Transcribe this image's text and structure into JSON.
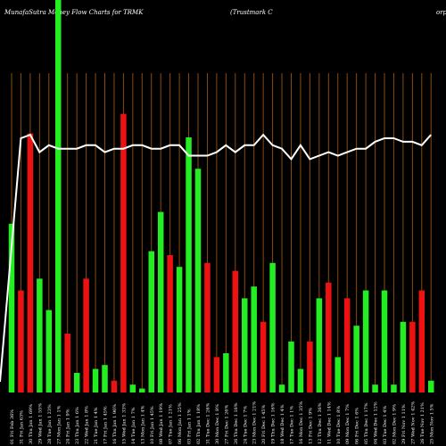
{
  "header": {
    "title_left": "MunafaSutra  Money Flow  Charts for TRMK",
    "title_right": "(Trustmark C",
    "title_corp": "orp"
  },
  "colors": {
    "background": "#000000",
    "grid": "#8a4b0f",
    "inflow": "#22ee22",
    "outflow": "#ee1111",
    "price_line": "#ffffff"
  },
  "chart_data": {
    "type": "bar",
    "title": "MunafaSutra  Money Flow  Charts for TRMK (Trustmark Corp)",
    "xlabel": "",
    "ylabel": "",
    "grid": "vertical",
    "legend": "none",
    "bar_ylim": [
      0,
      100
    ],
    "line_ylim": [
      0,
      100
    ],
    "categories": [
      "01 Fri Feb 2025",
      "31 Fri Jan 2025",
      "30 Thu Jan 2025",
      "29 Wed Jan 2025",
      "28 Tue Jan 2025",
      "27 Mon Jan 2025",
      "24 Fri Jan 2025",
      "23 Thu Jan 2025",
      "22 Wed Jan 2025",
      "21 Tue Jan 2025",
      "17 Fri Jan 2025",
      "16 Thu Jan 2025",
      "15 Wed Jan 2025",
      "14 Tue Jan 2025",
      "13 Mon Jan 2025",
      "10 Fri Jan 2025",
      "08 Wed Jan 2025",
      "07 Tue Jan 2025",
      "06 Mon Jan 2025",
      "03 Fri Jan 2025",
      "02 Thu Jan 2025",
      "31 Tue Dec 2024",
      "30 Mon Dec 2024",
      "27 Fri Dec 2024",
      "26 Thu Dec 2024",
      "24 Tue Dec 2024",
      "23 Mon Dec 2024",
      "20 Fri Dec 2024",
      "19 Thu Dec 2024",
      "18 Wed Dec 2024",
      "17 Tue Dec 2024",
      "16 Mon Dec 2024",
      "13 Fri Dec 2024",
      "12 Thu Dec 2024",
      "11 Wed Dec 2024",
      "10 Tue Dec 2024",
      "09 Mon Dec 2024",
      "06 Fri Dec 2024",
      "05 Thu Dec 2024",
      "04 Wed Dec 2024",
      "03 Tue Dec 2024",
      "02 Mon Dec 2024",
      "29 Fri Nov 2024",
      "27 Wed Nov 2024",
      "26 Tue Nov 2024",
      "25 Mon Nov 2024"
    ],
    "tick_labels": [
      "01 Fri Feb 36%",
      "31 Fri Jan 63%",
      "30 Thu Jan 1 69%",
      "29 Wed Jan 1 55%",
      "28 Tue Jan 1 23%",
      "27 Mon Jan 1 1%",
      "24 Fri Jan 1 9%",
      "23 Thu Jan 1 6%",
      "22 Wed Jan 1 8%",
      "21 Tue Jan 1 4%",
      "17 Fri Jan 1 45%",
      "16 Thu Jan 1 96%",
      "15 Wed Jan 1 33%",
      "14 Tue Jan 1 7%",
      "13 Mon Jan 1 4%",
      "10 Fri Jan 1 45%",
      "08 Wed Jan 1 19%",
      "07 Tue Jan 1 21%",
      "06 Mon Jan 1 25%",
      "03 Fri Jan 1 1%",
      "02 Thu Jan 1 18%",
      "31 Tue Dec 1 26%",
      "30 Mon Dec 1 8%",
      "27 Fri Dec 1 26%",
      "26 Thu Dec 1 16%",
      "24 Tue Dec 1 7%",
      "23 Mon Dec 1 21%",
      "20 Fri Dec 1 45%",
      "19 Thu Dec 1 16%",
      "18 Wed Dec 1 4%",
      "17 Tue Dec 1 1%",
      "16 Mon Dec 1 35%",
      "13 Fri Dec 1 9%",
      "12 Thu Dec 1 36%",
      "11 Wed Dec 1 14%",
      "10 Tue Dec 1 8%",
      "09 Mon Dec 1 7%",
      "06 Fri Dec 1 6%",
      "05 Thu Dec 1 17%",
      "04 Wed Dec 1 12%",
      "03 Tue Dec 1 4%",
      "02 Mon Dec 1 9%",
      "29 Fri Nov 1 11%",
      "27 Wed Nov 1 42%",
      "26 Tue Nov 1 21%",
      "25 Mon Nov 1 5%"
    ],
    "series": [
      {
        "kind": "bars",
        "values": [
          43,
          26,
          66,
          29,
          21,
          100,
          15,
          5,
          29,
          6,
          7,
          3,
          71,
          2,
          1,
          36,
          46,
          35,
          32,
          65,
          57,
          33,
          9,
          10,
          31,
          24,
          27,
          18,
          33,
          2,
          13,
          6,
          13,
          24,
          28,
          9,
          24,
          17,
          26,
          2,
          26,
          2,
          18,
          18,
          26,
          3
        ],
        "flow": [
          "in",
          "out",
          "out",
          "in",
          "in",
          "in",
          "out",
          "in",
          "out",
          "in",
          "in",
          "out",
          "out",
          "in",
          "in",
          "in",
          "in",
          "out",
          "in",
          "in",
          "in",
          "out",
          "out",
          "in",
          "out",
          "in",
          "in",
          "out",
          "in",
          "in",
          "in",
          "in",
          "out",
          "in",
          "out",
          "in",
          "out",
          "in",
          "in",
          "in",
          "in",
          "in",
          "in",
          "out",
          "out",
          "in"
        ]
      },
      {
        "kind": "line",
        "values": [
          0,
          70,
          71,
          66,
          68,
          67,
          67,
          67,
          68,
          68,
          66,
          67,
          67,
          68,
          68,
          67,
          67,
          68,
          68,
          65,
          65,
          65,
          66,
          68,
          66,
          68,
          68,
          71,
          68,
          67,
          64,
          68,
          64,
          65,
          66,
          65,
          66,
          67,
          67,
          69,
          70,
          70,
          69,
          69,
          68,
          71
        ]
      }
    ]
  }
}
